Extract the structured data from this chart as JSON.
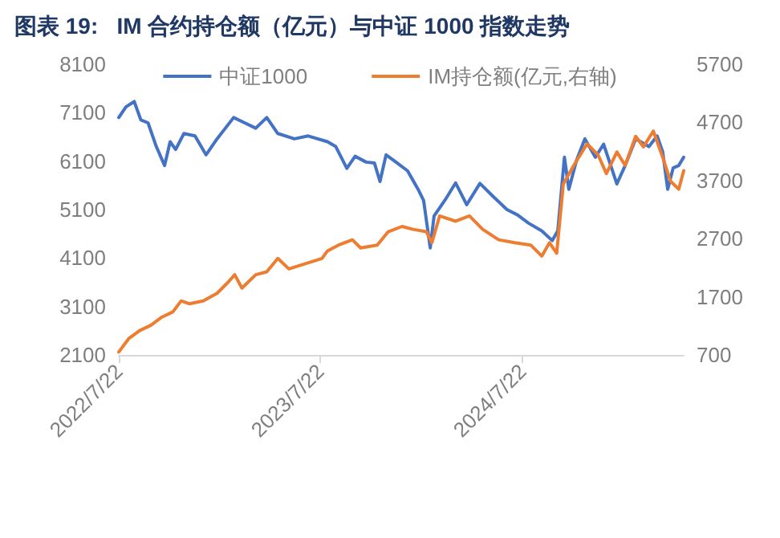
{
  "chart_data": {
    "type": "line",
    "title": "图表 19:   IM 合约持仓额（亿元）与中证 1000 指数走势",
    "series": [
      {
        "name": "中证1000",
        "color": "#4472c4",
        "x": [
          "2022-07-22",
          "2022-08-04",
          "2022-08-19",
          "2022-08-31",
          "2022-09-13",
          "2022-09-28",
          "2022-10-13",
          "2022-10-23",
          "2022-11-02",
          "2022-11-17",
          "2022-12-07",
          "2022-12-27",
          "2023-01-16",
          "2023-02-15",
          "2023-03-07",
          "2023-03-27",
          "2023-04-16",
          "2023-05-06",
          "2023-06-05",
          "2023-06-30",
          "2023-08-04",
          "2023-08-19",
          "2023-09-08",
          "2023-09-23",
          "2023-10-13",
          "2023-10-28",
          "2023-11-07",
          "2023-11-18",
          "2023-12-07",
          "2023-12-27",
          "2024-01-15",
          "2024-01-25",
          "2024-02-06",
          "2024-02-13",
          "2024-03-04",
          "2024-03-23",
          "2024-04-12",
          "2024-05-06",
          "2024-05-30",
          "2024-06-24",
          "2024-07-13",
          "2024-08-02",
          "2024-08-26",
          "2024-09-14",
          "2024-09-24",
          "2024-10-06",
          "2024-10-14",
          "2024-10-28",
          "2024-11-12",
          "2024-12-01",
          "2024-12-16",
          "2025-01-09",
          "2025-01-24",
          "2025-02-12",
          "2025-03-08",
          "2025-03-23",
          "2025-04-02",
          "2025-04-11",
          "2025-04-21",
          "2025-05-01",
          "2025-05-10"
        ],
        "values": [
          7000,
          7220,
          7330,
          6950,
          6890,
          6400,
          6010,
          6500,
          6340,
          6670,
          6620,
          6230,
          6560,
          7000,
          6890,
          6780,
          7000,
          6670,
          6560,
          6620,
          6500,
          6400,
          5950,
          6200,
          6080,
          6060,
          5680,
          6230,
          6070,
          5900,
          5520,
          5290,
          4310,
          4970,
          5300,
          5650,
          5200,
          5640,
          5370,
          5100,
          4990,
          4820,
          4660,
          4460,
          4660,
          6180,
          5520,
          6120,
          6560,
          6180,
          6450,
          5630,
          6010,
          6560,
          6400,
          6620,
          6290,
          5520,
          5960,
          6010,
          6180
        ]
      },
      {
        "name": "IM持仓额(亿元,右轴)",
        "color": "#ed7d31",
        "axis": "y2",
        "x": [
          "2022-07-22",
          "2022-08-09",
          "2022-08-29",
          "2022-09-18",
          "2022-10-08",
          "2022-10-28",
          "2022-11-12",
          "2022-11-27",
          "2022-12-22",
          "2023-01-16",
          "2023-02-05",
          "2023-02-17",
          "2023-03-02",
          "2023-03-27",
          "2023-04-16",
          "2023-05-06",
          "2023-05-26",
          "2023-06-25",
          "2023-07-25",
          "2023-08-04",
          "2023-08-24",
          "2023-09-18",
          "2023-10-03",
          "2023-11-02",
          "2023-11-22",
          "2023-12-17",
          "2024-01-06",
          "2024-01-30",
          "2024-02-09",
          "2024-02-23",
          "2024-03-23",
          "2024-04-17",
          "2024-05-11",
          "2024-06-09",
          "2024-07-08",
          "2024-08-06",
          "2024-08-26",
          "2024-09-09",
          "2024-09-22",
          "2024-10-04",
          "2024-10-23",
          "2024-11-16",
          "2024-12-06",
          "2024-12-21",
          "2025-01-09",
          "2025-01-24",
          "2025-02-12",
          "2025-02-26",
          "2025-03-16",
          "2025-04-02",
          "2025-04-16",
          "2025-05-01",
          "2025-05-10"
        ],
        "values": [
          750,
          980,
          1120,
          1210,
          1350,
          1440,
          1630,
          1580,
          1630,
          1760,
          1950,
          2080,
          1850,
          2080,
          2130,
          2360,
          2180,
          2270,
          2360,
          2490,
          2590,
          2680,
          2540,
          2590,
          2820,
          2910,
          2860,
          2820,
          2630,
          3090,
          3000,
          3090,
          2860,
          2680,
          2630,
          2590,
          2400,
          2630,
          2450,
          3640,
          3960,
          4330,
          4140,
          3820,
          4190,
          3960,
          4460,
          4280,
          4550,
          4100,
          3690,
          3550,
          3870
        ]
      }
    ],
    "xlim": [
      "2022-07-22",
      "2025-05-10"
    ],
    "xticks": [
      {
        "value": "2022-07-22",
        "label": "2022/7/22"
      },
      {
        "value": "2023-07-22",
        "label": "2023/7/22"
      },
      {
        "value": "2024-07-22",
        "label": "2024/7/22"
      }
    ],
    "ylim": [
      2100,
      8100
    ],
    "yticks": [
      2100,
      3100,
      4100,
      5100,
      6100,
      7100,
      8100
    ],
    "y2lim": [
      700,
      5700
    ],
    "y2ticks": [
      700,
      1700,
      2700,
      3700,
      4700,
      5700
    ],
    "legend": "top",
    "grid": false,
    "marker": "none",
    "line_style": "solid"
  }
}
